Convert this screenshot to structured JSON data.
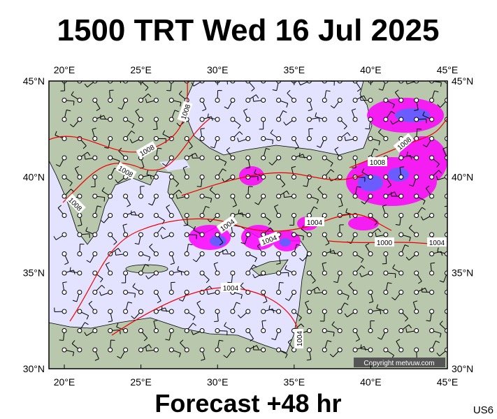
{
  "title": "1500 TRT Wed 16 Jul 2025",
  "footer": "Forecast +48 hr",
  "model": "US6",
  "copyright": "Copyright metvuw.com",
  "lon_labels": [
    "20°E",
    "25°E",
    "30°E",
    "35°E",
    "40°E",
    "45°E"
  ],
  "lat_labels": [
    "45°N",
    "40°N",
    "35°N",
    "30°N"
  ],
  "isobar_labels": [
    "1008",
    "1008",
    "1008",
    "1008",
    "1008",
    "1008",
    "1004",
    "1004",
    "1004",
    "1004",
    "1004",
    "1000",
    "1004"
  ]
}
